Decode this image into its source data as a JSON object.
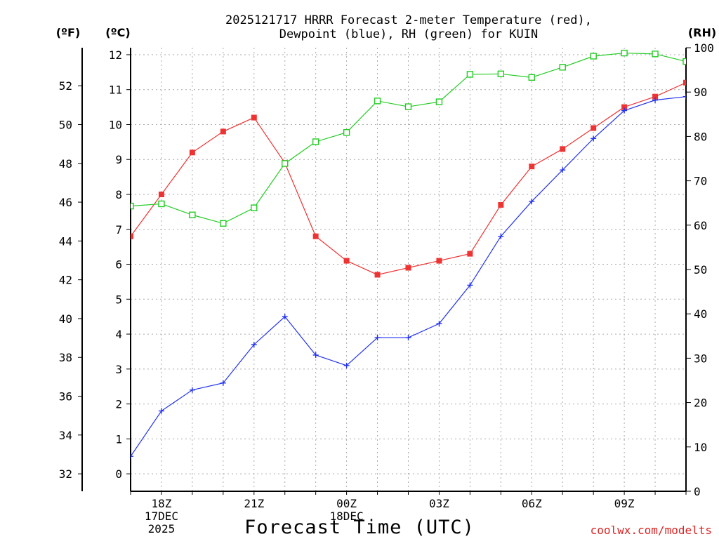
{
  "colors": {
    "temperature": "#ee3333",
    "dewpoint": "#2233ee",
    "rh": "#22cc22",
    "credit": "#dd2222"
  },
  "chart_data": {
    "type": "line",
    "title_lines": [
      "2025121717 HRRR Forecast 2-meter Temperature (red),",
      "Dewpoint (blue), RH (green) for KUIN"
    ],
    "xlabel": "Forecast Time (UTC)",
    "credit": "coolwx.com/modelts",
    "unit_labels": {
      "fahrenheit": "(ºF)",
      "celsius": "(ºC)",
      "rh": "(RH)"
    },
    "x_hours": [
      17,
      18,
      19,
      20,
      21,
      22,
      23,
      24,
      25,
      26,
      27,
      28,
      29,
      30,
      31,
      32,
      33,
      34,
      35
    ],
    "x_ticks": [
      {
        "hour": 18,
        "lines": [
          "18Z",
          "17DEC",
          "2025"
        ]
      },
      {
        "hour": 21,
        "lines": [
          "21Z"
        ]
      },
      {
        "hour": 24,
        "lines": [
          "00Z",
          "18DEC"
        ]
      },
      {
        "hour": 27,
        "lines": [
          "03Z"
        ]
      },
      {
        "hour": 30,
        "lines": [
          "06Z"
        ]
      },
      {
        "hour": 33,
        "lines": [
          "09Z"
        ]
      }
    ],
    "xlim": [
      17,
      35
    ],
    "celsius_axis": {
      "range": [
        -0.5,
        12.2
      ],
      "ticks": [
        0,
        1,
        2,
        3,
        4,
        5,
        6,
        7,
        8,
        9,
        10,
        11,
        12
      ]
    },
    "fahrenheit_axis": {
      "ticks": [
        32,
        34,
        36,
        38,
        40,
        42,
        44,
        46,
        48,
        50,
        52
      ]
    },
    "rh_axis": {
      "range": [
        0,
        100
      ],
      "ticks": [
        0,
        10,
        20,
        30,
        40,
        50,
        60,
        70,
        80,
        90,
        100
      ]
    },
    "grid": true,
    "series": [
      {
        "name": "Temperature",
        "axis": "celsius",
        "color_key": "temperature",
        "marker": "filled-square",
        "values": [
          6.8,
          8.0,
          9.2,
          9.8,
          10.2,
          8.9,
          6.8,
          6.1,
          5.7,
          5.9,
          6.1,
          6.3,
          7.7,
          8.8,
          9.3,
          9.9,
          10.5,
          10.8,
          11.2
        ]
      },
      {
        "name": "Dewpoint",
        "axis": "celsius",
        "color_key": "dewpoint",
        "marker": "plus",
        "values": [
          0.5,
          1.8,
          2.4,
          2.6,
          3.7,
          4.5,
          3.4,
          3.1,
          3.9,
          3.9,
          4.3,
          5.4,
          6.8,
          7.8,
          8.7,
          9.6,
          10.4,
          10.7,
          10.8
        ]
      },
      {
        "name": "RH",
        "axis": "rh",
        "color_key": "rh",
        "marker": "open-square",
        "values": [
          64.3,
          64.8,
          62.3,
          60.4,
          63.9,
          73.9,
          78.8,
          80.9,
          88.0,
          86.7,
          87.8,
          94.0,
          94.1,
          93.3,
          95.6,
          98.1,
          98.8,
          98.6,
          96.9
        ]
      }
    ]
  }
}
